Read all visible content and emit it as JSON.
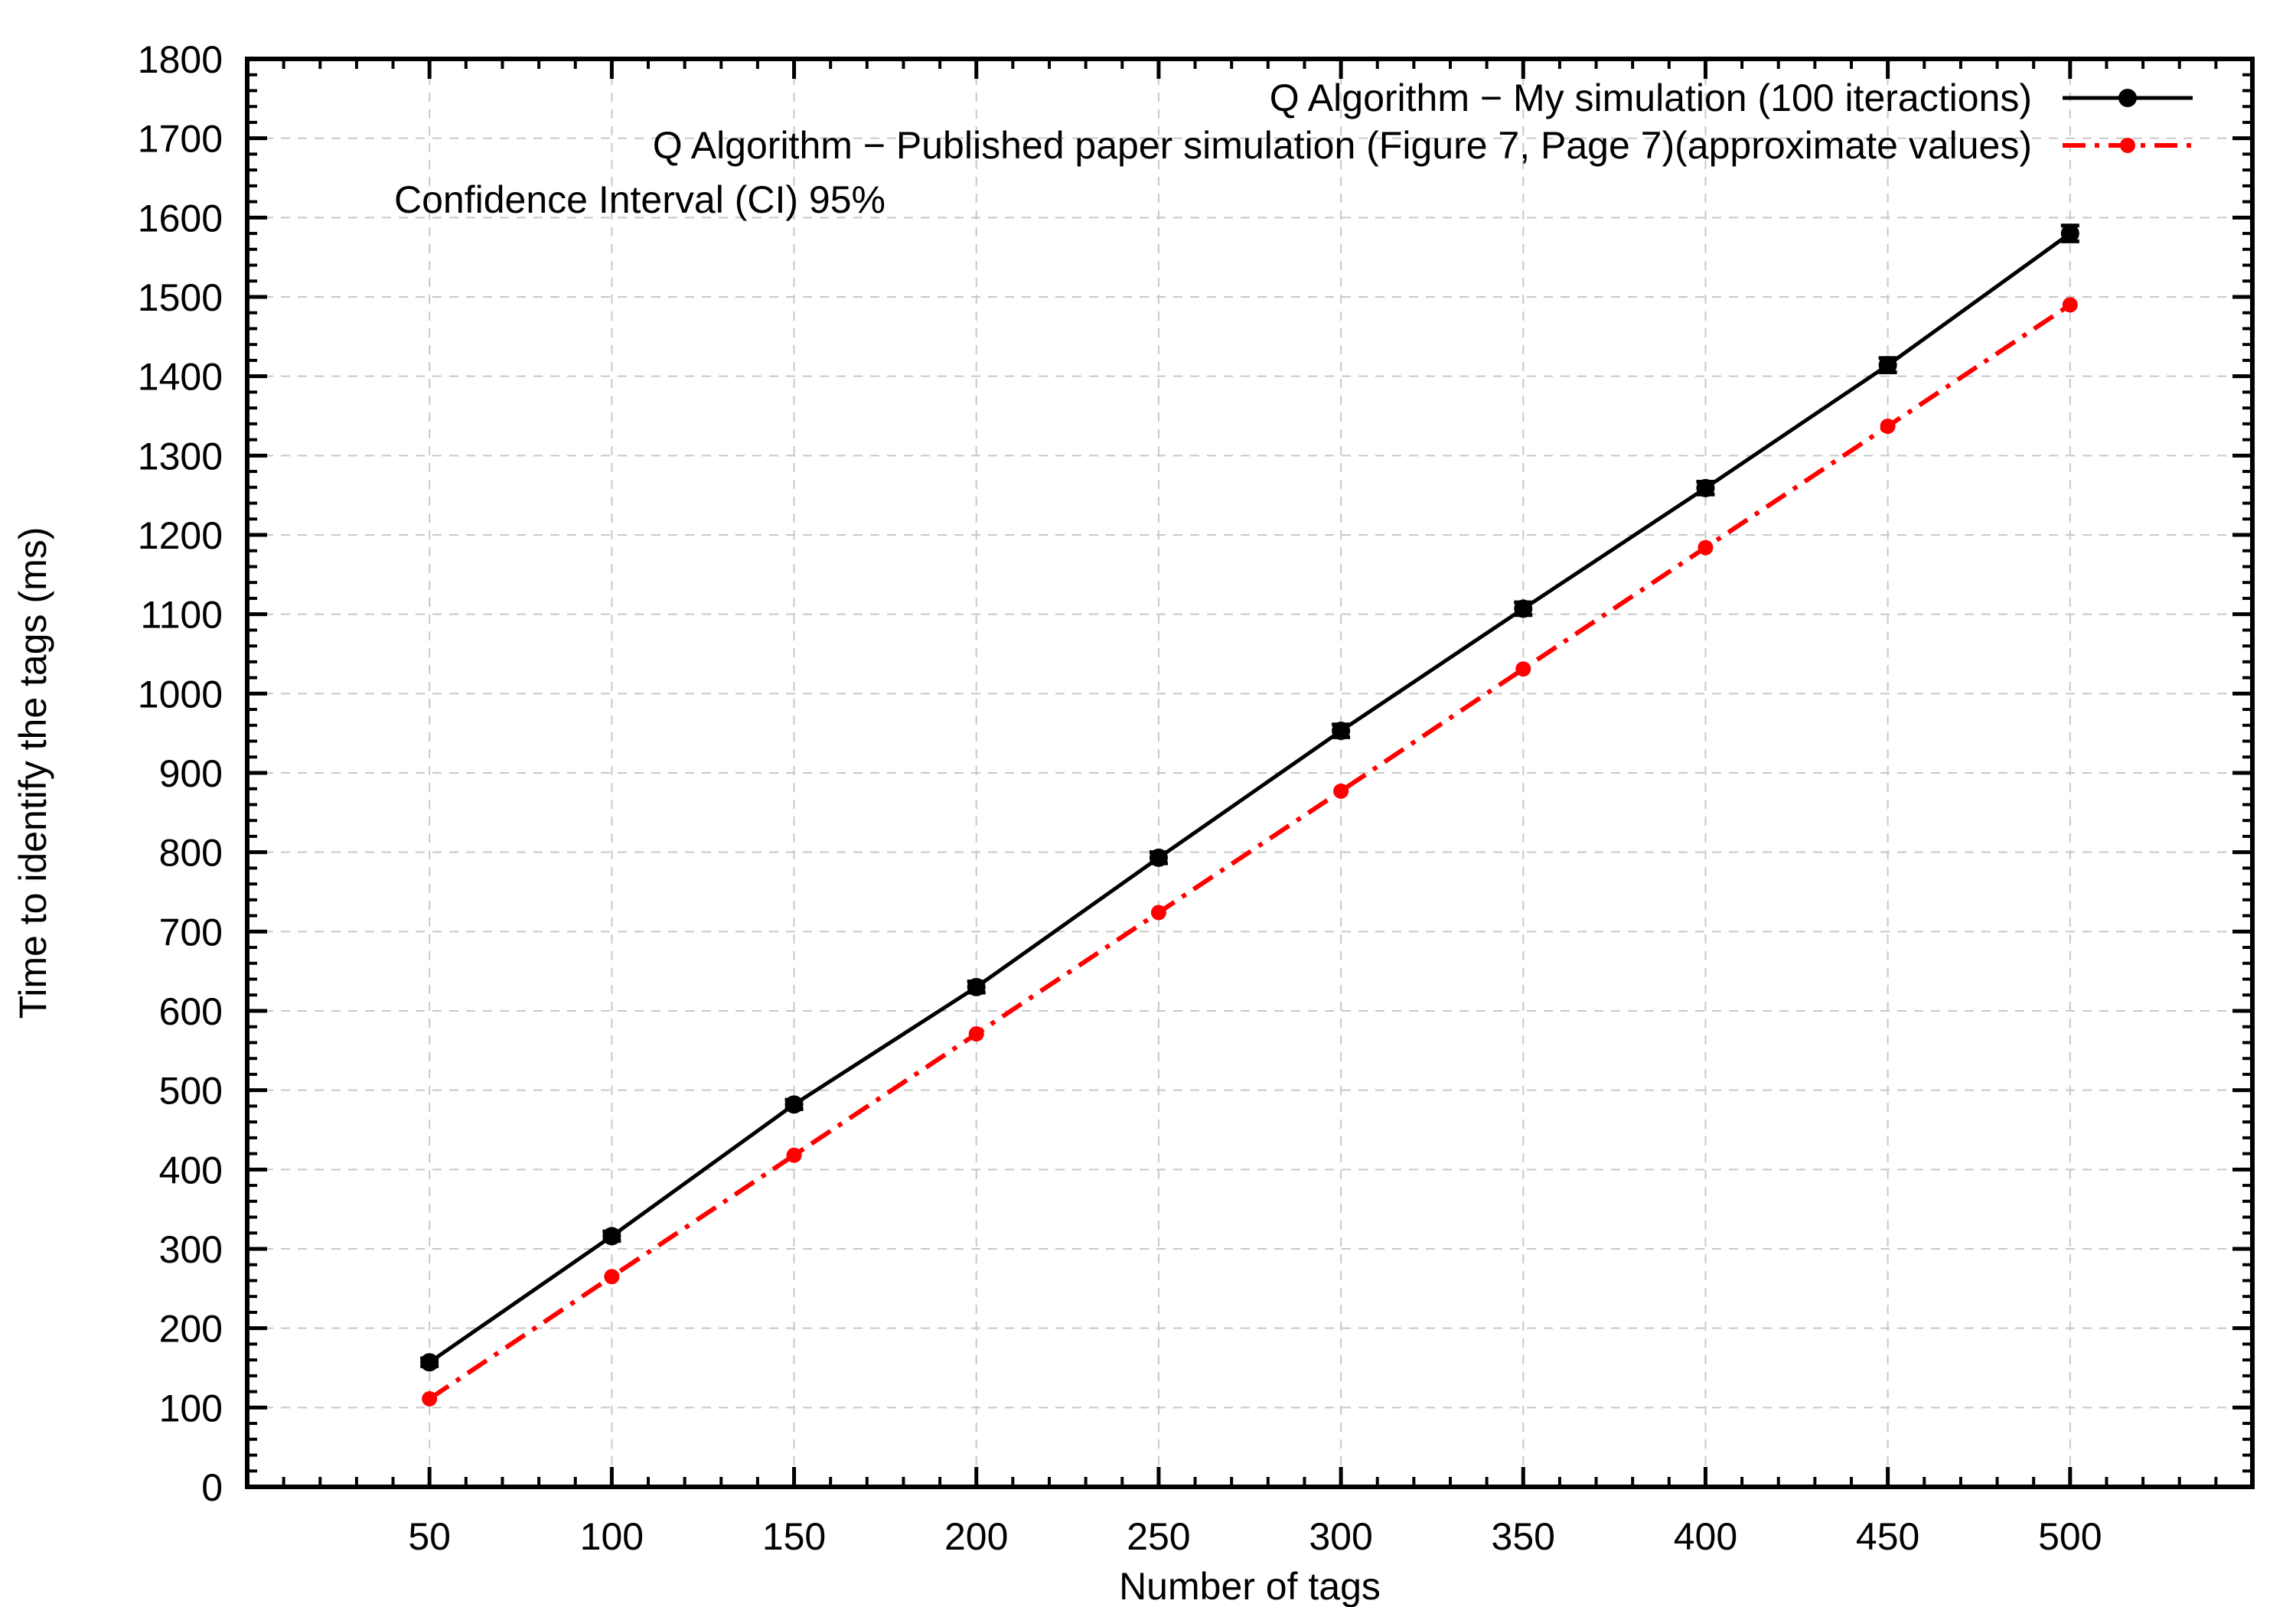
{
  "chart_data": {
    "type": "line",
    "title": "",
    "xlabel": "Number of tags",
    "ylabel": "Time to identify the tags (ms)",
    "xlim": [
      0,
      550
    ],
    "ylim": [
      0,
      1800
    ],
    "x_ticks": [
      50,
      100,
      150,
      200,
      250,
      300,
      350,
      400,
      450,
      500
    ],
    "y_ticks": [
      0,
      100,
      200,
      300,
      400,
      500,
      600,
      700,
      800,
      900,
      1000,
      1100,
      1200,
      1300,
      1400,
      1500,
      1600,
      1700,
      1800
    ],
    "grid": true,
    "legend_position": "top-right",
    "annotation": "Confidence Interval (CI) 95%",
    "series": [
      {
        "name": "Q Algorithm − My simulation (100 iteractions)",
        "color": "#000000",
        "style": "solid",
        "error_bars": true,
        "x": [
          50,
          100,
          150,
          200,
          250,
          300,
          350,
          400,
          450,
          500
        ],
        "y": [
          157,
          316,
          482,
          630,
          793,
          953,
          1107,
          1259,
          1414,
          1580
        ],
        "ci": [
          5,
          6,
          6,
          7,
          7,
          8,
          8,
          8,
          9,
          10
        ]
      },
      {
        "name": "Q Algorithm − Published paper simulation (Figure 7, Page 7)(approximate values)",
        "color": "#ff0000",
        "style": "dash-dot",
        "error_bars": false,
        "x": [
          50,
          100,
          150,
          200,
          250,
          300,
          350,
          400,
          450,
          500
        ],
        "y": [
          111,
          265,
          418,
          571,
          724,
          877,
          1031,
          1184,
          1337,
          1490
        ]
      }
    ]
  }
}
